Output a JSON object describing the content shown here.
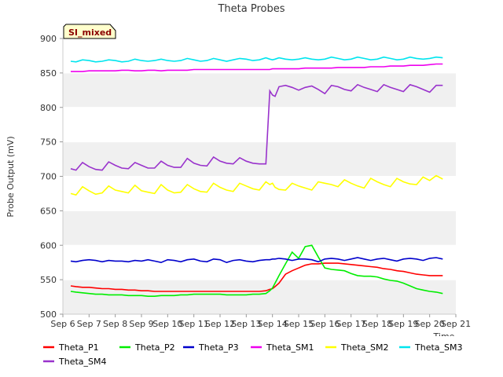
{
  "chart_data": {
    "type": "line",
    "title": "Theta Probes",
    "xlabel": "Time",
    "ylabel": "Probe Output (mV)",
    "badge": "SI_mixed",
    "ylim": [
      500,
      900
    ],
    "yticks": [
      500,
      550,
      600,
      650,
      700,
      750,
      800,
      850,
      900
    ],
    "xlim": [
      0,
      15
    ],
    "xticks": [
      0,
      1,
      2,
      3,
      4,
      5,
      6,
      7,
      8,
      9,
      10,
      11,
      12,
      13,
      14,
      15
    ],
    "xtick_labels": [
      "Sep 6",
      "Sep 7",
      "Sep 8",
      "Sep 9",
      "Sep 10",
      "Sep 11",
      "Sep 12",
      "Sep 13",
      "Sep 14",
      "Sep 15",
      "Sep 16",
      "Sep 17",
      "Sep 18",
      "Sep 19",
      "Sep 20",
      "Sep 21"
    ],
    "x": [
      0.3,
      0.5,
      0.75,
      1.0,
      1.25,
      1.5,
      1.75,
      2.0,
      2.25,
      2.5,
      2.75,
      3.0,
      3.25,
      3.5,
      3.75,
      4.0,
      4.25,
      4.5,
      4.75,
      5.0,
      5.25,
      5.5,
      5.75,
      6.0,
      6.25,
      6.5,
      6.75,
      7.0,
      7.25,
      7.5,
      7.75,
      7.9,
      8.0,
      8.1,
      8.25,
      8.5,
      8.75,
      9.0,
      9.25,
      9.5,
      9.75,
      10.0,
      10.25,
      10.5,
      10.75,
      11.0,
      11.25,
      11.5,
      11.75,
      12.0,
      12.25,
      12.5,
      12.75,
      13.0,
      13.25,
      13.5,
      13.75,
      14.0,
      14.25,
      14.5
    ],
    "series": [
      {
        "name": "Theta_P1",
        "color": "#ff0000",
        "values": [
          541,
          540,
          539,
          539,
          538,
          537,
          537,
          536,
          536,
          535,
          535,
          534,
          534,
          533,
          533,
          533,
          533,
          533,
          533,
          533,
          533,
          533,
          533,
          533,
          533,
          533,
          533,
          533,
          533,
          533,
          534,
          536,
          537,
          540,
          545,
          558,
          563,
          567,
          571,
          573,
          573,
          574,
          574,
          574,
          573,
          572,
          571,
          570,
          569,
          568,
          566,
          565,
          563,
          562,
          560,
          558,
          557,
          556,
          556,
          556
        ]
      },
      {
        "name": "Theta_P2",
        "color": "#00ee00",
        "values": [
          533,
          532,
          531,
          530,
          529,
          529,
          528,
          528,
          528,
          527,
          527,
          527,
          526,
          526,
          527,
          527,
          527,
          528,
          528,
          529,
          529,
          529,
          529,
          529,
          528,
          528,
          528,
          528,
          529,
          529,
          530,
          534,
          538,
          545,
          556,
          573,
          590,
          581,
          598,
          600,
          583,
          567,
          565,
          564,
          563,
          559,
          556,
          555,
          555,
          554,
          551,
          549,
          548,
          545,
          541,
          537,
          535,
          533,
          532,
          530
        ]
      },
      {
        "name": "Theta_P3",
        "color": "#0000cc",
        "values": [
          577,
          576,
          578,
          579,
          578,
          576,
          578,
          577,
          577,
          576,
          578,
          577,
          579,
          577,
          575,
          579,
          578,
          576,
          579,
          580,
          577,
          576,
          580,
          579,
          575,
          578,
          579,
          577,
          576,
          578,
          579,
          579,
          580,
          580,
          581,
          580,
          578,
          580,
          580,
          579,
          576,
          580,
          581,
          580,
          578,
          580,
          582,
          580,
          578,
          580,
          581,
          579,
          577,
          580,
          581,
          580,
          578,
          581,
          582,
          580
        ]
      },
      {
        "name": "Theta_SM1",
        "color": "#ee00ee",
        "values": [
          852,
          852,
          852,
          853,
          853,
          853,
          853,
          853,
          854,
          854,
          853,
          853,
          854,
          854,
          853,
          854,
          854,
          854,
          854,
          855,
          855,
          855,
          855,
          855,
          855,
          855,
          855,
          855,
          855,
          855,
          855,
          855,
          856,
          856,
          856,
          856,
          856,
          856,
          857,
          857,
          857,
          857,
          857,
          858,
          858,
          858,
          858,
          858,
          859,
          859,
          859,
          860,
          860,
          860,
          861,
          861,
          861,
          862,
          863,
          863
        ]
      },
      {
        "name": "Theta_SM2",
        "color": "#ffff00",
        "values": [
          675,
          673,
          685,
          679,
          674,
          676,
          686,
          680,
          678,
          676,
          687,
          679,
          677,
          675,
          688,
          680,
          676,
          677,
          688,
          682,
          678,
          677,
          690,
          684,
          680,
          678,
          690,
          686,
          682,
          680,
          692,
          688,
          690,
          684,
          681,
          680,
          690,
          686,
          683,
          680,
          692,
          690,
          688,
          685,
          695,
          690,
          686,
          683,
          697,
          692,
          688,
          685,
          697,
          692,
          689,
          688,
          699,
          694,
          701,
          696
        ]
      },
      {
        "name": "Theta_SM3",
        "color": "#00e5ee",
        "values": [
          867,
          866,
          869,
          868,
          866,
          867,
          869,
          868,
          866,
          867,
          870,
          868,
          867,
          868,
          870,
          868,
          867,
          868,
          871,
          869,
          867,
          868,
          871,
          869,
          867,
          869,
          871,
          870,
          868,
          869,
          872,
          870,
          869,
          870,
          872,
          870,
          869,
          870,
          872,
          870,
          869,
          870,
          873,
          871,
          869,
          870,
          873,
          871,
          869,
          870,
          873,
          871,
          869,
          870,
          873,
          871,
          870,
          871,
          873,
          872
        ]
      },
      {
        "name": "Theta_SM4",
        "color": "#9932cc",
        "values": [
          711,
          709,
          720,
          714,
          710,
          709,
          721,
          716,
          712,
          711,
          720,
          716,
          712,
          712,
          722,
          716,
          713,
          713,
          726,
          719,
          716,
          715,
          728,
          722,
          719,
          718,
          727,
          722,
          719,
          718,
          718,
          824,
          818,
          816,
          830,
          832,
          829,
          825,
          829,
          831,
          826,
          820,
          832,
          830,
          826,
          824,
          833,
          829,
          826,
          823,
          833,
          829,
          826,
          823,
          833,
          830,
          826,
          822,
          832,
          832
        ]
      }
    ]
  }
}
